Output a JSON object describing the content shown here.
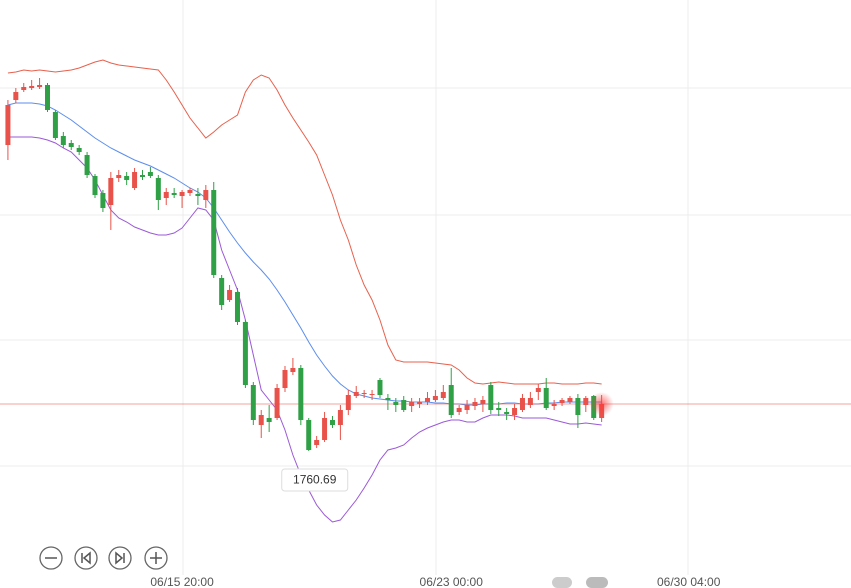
{
  "chart_data": {
    "type": "candlestick",
    "x": [
      0,
      1,
      2,
      3,
      4,
      5,
      6,
      7,
      8,
      9,
      10,
      11,
      12,
      13,
      14,
      15,
      16,
      17,
      18,
      19,
      20,
      21,
      22,
      23,
      24,
      25,
      26,
      27,
      28,
      29,
      30,
      31,
      32,
      33,
      34,
      35,
      36,
      37,
      38,
      39,
      40,
      41,
      42,
      43,
      44,
      45,
      46,
      47,
      48,
      49,
      50,
      51,
      52,
      53,
      54,
      55,
      56,
      57,
      58,
      59,
      60,
      61,
      62,
      63,
      64,
      65,
      66,
      67,
      68,
      69,
      70,
      71,
      72,
      73,
      74,
      75
    ],
    "open": [
      1852.5,
      1866,
      1869,
      1869.6,
      1869.9,
      1870.5,
      1862.4,
      1855.2,
      1853.1,
      1851.6,
      1849.5,
      1843.2,
      1838.1,
      1834.5,
      1842.6,
      1843.2,
      1839.6,
      1843.5,
      1844.4,
      1842.6,
      1836.6,
      1838.1,
      1837.2,
      1838.1,
      1837.8,
      1836,
      1839,
      1812.6,
      1806,
      1808.4,
      1799.4,
      1780.5,
      1768.5,
      1770.6,
      1770.6,
      1779.6,
      1784.4,
      1785.6,
      1770,
      1762.5,
      1764,
      1770,
      1768.5,
      1773,
      1777.2,
      1777.8,
      1777.5,
      1782,
      1776.6,
      1775.4,
      1776,
      1774.2,
      1774.8,
      1775.4,
      1776,
      1776.6,
      1780.5,
      1772.4,
      1773,
      1774.2,
      1774.8,
      1780.5,
      1773.6,
      1772.4,
      1771.5,
      1773,
      1774.5,
      1778.4,
      1779.6,
      1774.2,
      1775.1,
      1775.4,
      1776.6,
      1774.5,
      1777.2,
      1770.6
    ],
    "high": [
      1866,
      1869.6,
      1871.1,
      1872,
      1872.6,
      1871.1,
      1863,
      1856.4,
      1854,
      1852.5,
      1850.4,
      1843.8,
      1839,
      1844.4,
      1845,
      1844.4,
      1845.6,
      1845,
      1845.9,
      1843.5,
      1839.6,
      1839.6,
      1839,
      1839.6,
      1839.6,
      1840.5,
      1841.4,
      1813.5,
      1810.5,
      1809.6,
      1800,
      1781.4,
      1773,
      1774.5,
      1780.8,
      1786.2,
      1788.6,
      1786.5,
      1770.6,
      1765.2,
      1772.4,
      1771.2,
      1774.5,
      1779,
      1780.2,
      1779,
      1779,
      1782.6,
      1777.8,
      1776.6,
      1777.2,
      1776.6,
      1776.6,
      1778.4,
      1779,
      1780.5,
      1785.6,
      1774.5,
      1776,
      1776.6,
      1777.2,
      1781.4,
      1775.4,
      1773.6,
      1774.8,
      1777.8,
      1778.4,
      1780.8,
      1782.6,
      1776,
      1776.6,
      1777.2,
      1777.8,
      1777.2,
      1777.5,
      1777.5
    ],
    "low": [
      1848,
      1865.1,
      1868.4,
      1869,
      1869.3,
      1862.4,
      1854,
      1851.6,
      1851,
      1849.5,
      1842.6,
      1836.6,
      1832.4,
      1827,
      1841.4,
      1840.5,
      1839,
      1842,
      1842.6,
      1833,
      1834.5,
      1836.6,
      1833.6,
      1837.2,
      1834.5,
      1833.6,
      1812.6,
      1803,
      1805.4,
      1798.5,
      1779.6,
      1768.5,
      1764.6,
      1766.4,
      1770,
      1778.4,
      1783.5,
      1768.5,
      1760.69,
      1761.6,
      1763.4,
      1767.6,
      1764,
      1771.5,
      1776.6,
      1776.6,
      1776,
      1776.6,
      1773,
      1772.4,
      1772.4,
      1772.4,
      1773.6,
      1774.5,
      1775.4,
      1776,
      1770.6,
      1771.5,
      1771.8,
      1773,
      1772.4,
      1771.8,
      1771.2,
      1770,
      1770,
      1772.4,
      1773.6,
      1776,
      1773,
      1773,
      1774.2,
      1774.8,
      1767.6,
      1772.4,
      1770,
      1769.4
    ],
    "close": [
      1864.5,
      1868.4,
      1869.9,
      1870.2,
      1870.5,
      1863,
      1854.6,
      1852.5,
      1851.9,
      1850.4,
      1843.5,
      1837.5,
      1833.6,
      1842.6,
      1843.5,
      1842,
      1844.4,
      1842.9,
      1843.2,
      1836,
      1838.4,
      1837.5,
      1838.4,
      1839,
      1837.2,
      1839,
      1813.5,
      1804.5,
      1809,
      1799.4,
      1780.5,
      1770,
      1771.5,
      1769.4,
      1779.6,
      1785,
      1785.6,
      1770,
      1761,
      1764,
      1770.6,
      1768.5,
      1773,
      1777.5,
      1778.4,
      1778.1,
      1777.8,
      1777.5,
      1776,
      1774.5,
      1773,
      1775.4,
      1775.4,
      1776.6,
      1777.2,
      1778.4,
      1771.5,
      1773.6,
      1774.5,
      1775.4,
      1776,
      1773,
      1773,
      1771.8,
      1773.6,
      1776.6,
      1776.6,
      1779.6,
      1773.6,
      1774.8,
      1776,
      1776.6,
      1771.5,
      1776.6,
      1770.6,
      1774.8
    ],
    "up_color": "#e8524a",
    "down_color": "#2fa046",
    "bands": [
      {
        "color": "#e8604c",
        "values": [
          1874.1,
          1874.4,
          1875,
          1874.7,
          1875,
          1874.7,
          1874.4,
          1874.7,
          1875,
          1875.6,
          1876.5,
          1877.4,
          1878,
          1877.1,
          1876.5,
          1876.2,
          1875.9,
          1875.6,
          1875.3,
          1875,
          1872,
          1868.4,
          1864.5,
          1860.6,
          1857.6,
          1854.6,
          1856.4,
          1858.5,
          1860,
          1861.5,
          1868.4,
          1872,
          1873.5,
          1872.6,
          1869,
          1864.5,
          1860.6,
          1857,
          1853.4,
          1849.5,
          1843.5,
          1837.5,
          1830,
          1824,
          1816.5,
          1810.5,
          1806,
          1800,
          1792.5,
          1788,
          1787.4,
          1787.4,
          1787.4,
          1787.4,
          1787.1,
          1786.8,
          1786.5,
          1785,
          1782.6,
          1781.1,
          1780.8,
          1781.1,
          1781.4,
          1781.1,
          1780.8,
          1780.8,
          1780.8,
          1780.8,
          1781.1,
          1781.1,
          1780.8,
          1780.8,
          1780.8,
          1781.1,
          1781.1,
          1780.8
        ]
      },
      {
        "color": "#5b8def",
        "values": [
          1864.5,
          1865.1,
          1865.1,
          1865.1,
          1864.8,
          1864.2,
          1863,
          1861.5,
          1860,
          1858.2,
          1856.4,
          1854.6,
          1853.1,
          1851.6,
          1850.4,
          1849.2,
          1848,
          1847.1,
          1846.2,
          1845,
          1843.8,
          1842.6,
          1841.1,
          1839.6,
          1838.4,
          1836.6,
          1833.6,
          1830,
          1826.4,
          1823.1,
          1820.1,
          1817.4,
          1815,
          1812.3,
          1809,
          1805.4,
          1801.5,
          1797.6,
          1793.4,
          1789.5,
          1786.2,
          1783.2,
          1780.8,
          1779,
          1777.8,
          1777.2,
          1776.6,
          1776.3,
          1776,
          1775.7,
          1775.7,
          1775.4,
          1775.4,
          1775.4,
          1775.1,
          1775.1,
          1774.8,
          1774.8,
          1774.5,
          1774.5,
          1774.8,
          1774.8,
          1774.8,
          1775.1,
          1775.1,
          1774.8,
          1774.8,
          1774.8,
          1775.1,
          1775.1,
          1775.4,
          1775.4,
          1775.4,
          1775.4,
          1775.4,
          1775.4
        ]
      },
      {
        "color": "#9b59d8",
        "values": [
          1854.9,
          1854.9,
          1854.9,
          1854.9,
          1854.6,
          1854,
          1853.1,
          1851.6,
          1850.4,
          1848,
          1845.6,
          1842,
          1837.5,
          1833,
          1830.6,
          1829.4,
          1827.9,
          1827,
          1826.1,
          1825.5,
          1825.5,
          1826.1,
          1827.6,
          1830.6,
          1833.6,
          1833,
          1830,
          1821,
          1815,
          1809,
          1800,
          1789.5,
          1779,
          1776,
          1773,
          1767,
          1759.5,
          1753.5,
          1749,
          1744.5,
          1741.5,
          1739.4,
          1740,
          1743,
          1746,
          1749.6,
          1753.5,
          1758,
          1761,
          1761.6,
          1762.5,
          1764.6,
          1766.4,
          1767.6,
          1768.5,
          1769.4,
          1770,
          1770,
          1769.4,
          1769.4,
          1770.6,
          1771.5,
          1771.5,
          1771.5,
          1771.2,
          1770.6,
          1770.6,
          1770.6,
          1770.6,
          1770,
          1769.4,
          1768.8,
          1768.8,
          1769.1,
          1768.8,
          1768.5
        ]
      }
    ],
    "last_price_color": "#e8524a",
    "xlim": [
      -1,
      106.5
    ],
    "ylim": [
      1723.5,
      1896
    ],
    "xticks": [
      {
        "value": 22,
        "label": "06/15 20:00"
      },
      {
        "value": 56,
        "label": "06/23 00:00"
      },
      {
        "value": 86,
        "label": "06/30 04:00"
      }
    ]
  }
}
